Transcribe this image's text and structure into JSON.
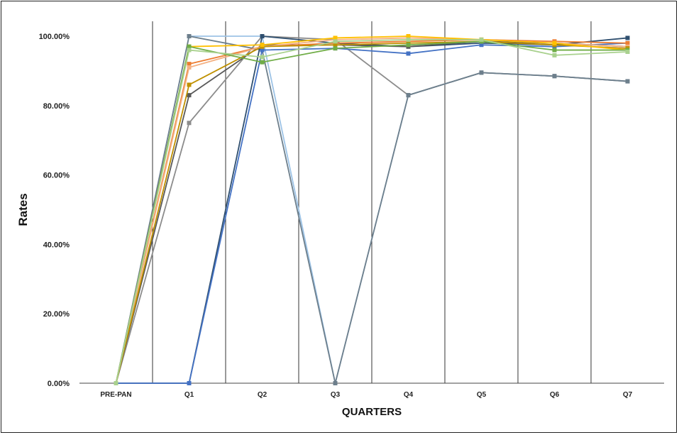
{
  "chart_data": {
    "type": "line",
    "title": "",
    "xlabel": "QUARTERS",
    "ylabel": "Rates",
    "categories": [
      "PRE-PAN",
      "Q1",
      "Q2",
      "Q3",
      "Q4",
      "Q5",
      "Q6",
      "Q7"
    ],
    "ylim": [
      0,
      100
    ],
    "yticks": [
      0,
      20,
      40,
      60,
      80,
      100
    ],
    "ytick_labels": [
      "0.00%",
      "20.00%",
      "40.00%",
      "60.00%",
      "80.00%",
      "100.00%"
    ],
    "grid": "vertical lines between categories",
    "legend": "none",
    "series": [
      {
        "color": "#9dc3e6",
        "values": [
          0,
          100,
          100,
          0,
          83,
          89.5,
          88.5,
          87
        ]
      },
      {
        "color": "#8c8c8c",
        "values": [
          0,
          75,
          100,
          99,
          83,
          89.5,
          88.5,
          87
        ]
      },
      {
        "color": "#6d7f8c",
        "values": [
          0,
          100,
          96,
          0,
          83,
          89.5,
          88.5,
          87
        ]
      },
      {
        "color": "#2f4f6f",
        "values": [
          0,
          0,
          100,
          98,
          97,
          98,
          97.5,
          99.5
        ]
      },
      {
        "color": "#4472c4",
        "values": [
          0,
          0,
          96,
          96.5,
          95,
          97.5,
          97,
          98
        ]
      },
      {
        "color": "#595959",
        "values": [
          0,
          83,
          97.5,
          97.5,
          97,
          98.5,
          98,
          97
        ]
      },
      {
        "color": "#ed7d31",
        "values": [
          0,
          92,
          97,
          98,
          98.5,
          99,
          98.5,
          98
        ]
      },
      {
        "color": "#f4b183",
        "values": [
          0,
          91,
          97,
          99,
          99.5,
          99,
          98,
          97
        ]
      },
      {
        "color": "#bf9000",
        "values": [
          0,
          86,
          97,
          97.5,
          98,
          98.5,
          97.5,
          96.5
        ]
      },
      {
        "color": "#ffc000",
        "values": [
          0,
          97,
          97.5,
          99.5,
          100,
          99,
          98,
          96
        ]
      },
      {
        "color": "#70ad47",
        "values": [
          0,
          97,
          92.5,
          96.5,
          97.5,
          98.5,
          96,
          96
        ]
      },
      {
        "color": "#a9d18e",
        "values": [
          0,
          96,
          94,
          98.5,
          99,
          99,
          94.5,
          95.5
        ]
      }
    ]
  }
}
